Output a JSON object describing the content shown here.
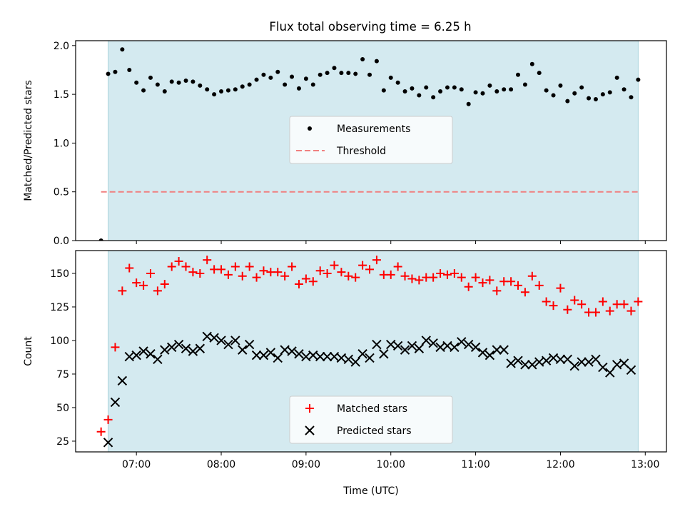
{
  "title": "Flux total observing time = 6.25 h",
  "colors": {
    "shade": "#d4eaf0",
    "threshold": "#f08080",
    "matched": "#ff0000",
    "predicted": "#000000",
    "measurement": "#000000"
  },
  "chart_data": [
    {
      "type": "scatter",
      "panel": "top",
      "ylabel": "Matched/Predicted stars",
      "xlim": [
        "06:17",
        "13:15"
      ],
      "ylim": [
        0,
        2.05
      ],
      "yticks": [
        0.0,
        0.5,
        1.0,
        1.5,
        2.0
      ],
      "ytick_labels": [
        "0.0",
        "0.5",
        "1.0",
        "1.5",
        "2.0"
      ],
      "shaded_span": [
        "06:40",
        "12:55"
      ],
      "threshold": 0.5,
      "legend": {
        "position": "center",
        "entries": [
          "Measurements",
          "Threshold"
        ]
      },
      "series": [
        {
          "name": "Measurements",
          "x": [
            "06:35",
            "06:40",
            "06:45",
            "06:50",
            "06:55",
            "07:00",
            "07:05",
            "07:10",
            "07:15",
            "07:20",
            "07:25",
            "07:30",
            "07:35",
            "07:40",
            "07:45",
            "07:50",
            "07:55",
            "08:00",
            "08:05",
            "08:10",
            "08:15",
            "08:20",
            "08:25",
            "08:30",
            "08:35",
            "08:40",
            "08:45",
            "08:50",
            "08:55",
            "09:00",
            "09:05",
            "09:10",
            "09:15",
            "09:20",
            "09:25",
            "09:30",
            "09:35",
            "09:40",
            "09:45",
            "09:50",
            "09:55",
            "10:00",
            "10:05",
            "10:10",
            "10:15",
            "10:20",
            "10:25",
            "10:30",
            "10:35",
            "10:40",
            "10:45",
            "10:50",
            "10:55",
            "11:00",
            "11:05",
            "11:10",
            "11:15",
            "11:20",
            "11:25",
            "11:30",
            "11:35",
            "11:40",
            "11:45",
            "11:50",
            "11:55",
            "12:00",
            "12:05",
            "12:10",
            "12:15",
            "12:20",
            "12:25",
            "12:30",
            "12:35",
            "12:40",
            "12:45",
            "12:50",
            "12:55"
          ],
          "y": [
            0.0,
            1.71,
            1.73,
            1.96,
            1.75,
            1.62,
            1.54,
            1.67,
            1.6,
            1.53,
            1.63,
            1.62,
            1.64,
            1.63,
            1.59,
            1.55,
            1.5,
            1.53,
            1.54,
            1.55,
            1.58,
            1.6,
            1.65,
            1.7,
            1.67,
            1.73,
            1.6,
            1.68,
            1.56,
            1.66,
            1.6,
            1.7,
            1.72,
            1.77,
            1.72,
            1.72,
            1.71,
            1.86,
            1.7,
            1.84,
            1.54,
            1.67,
            1.62,
            1.53,
            1.56,
            1.49,
            1.57,
            1.47,
            1.53,
            1.57,
            1.57,
            1.55,
            1.4,
            1.52,
            1.51,
            1.59,
            1.53,
            1.55,
            1.55,
            1.7,
            1.6,
            1.81,
            1.72,
            1.54,
            1.49,
            1.59,
            1.43,
            1.51,
            1.57,
            1.46,
            1.45,
            1.5,
            1.52,
            1.67,
            1.55,
            1.47,
            1.65
          ]
        }
      ]
    },
    {
      "type": "scatter",
      "panel": "bottom",
      "xlabel": "Time (UTC)",
      "ylabel": "Count",
      "xlim": [
        "06:17",
        "13:15"
      ],
      "ylim": [
        17,
        167
      ],
      "yticks": [
        25,
        50,
        75,
        100,
        125,
        150
      ],
      "ytick_labels": [
        "25",
        "50",
        "75",
        "100",
        "125",
        "150"
      ],
      "xticks": [
        "07:00",
        "08:00",
        "09:00",
        "10:00",
        "11:00",
        "12:00",
        "13:00"
      ],
      "shaded_span": [
        "06:40",
        "12:55"
      ],
      "legend": {
        "position": "lower center",
        "entries": [
          "Matched stars",
          "Predicted stars"
        ]
      },
      "series": [
        {
          "name": "Matched stars",
          "marker": "+",
          "x": [
            "06:35",
            "06:40",
            "06:45",
            "06:50",
            "06:55",
            "07:00",
            "07:05",
            "07:10",
            "07:15",
            "07:20",
            "07:25",
            "07:30",
            "07:35",
            "07:40",
            "07:45",
            "07:50",
            "07:55",
            "08:00",
            "08:05",
            "08:10",
            "08:15",
            "08:20",
            "08:25",
            "08:30",
            "08:35",
            "08:40",
            "08:45",
            "08:50",
            "08:55",
            "09:00",
            "09:05",
            "09:10",
            "09:15",
            "09:20",
            "09:25",
            "09:30",
            "09:35",
            "09:40",
            "09:45",
            "09:50",
            "09:55",
            "10:00",
            "10:05",
            "10:10",
            "10:15",
            "10:20",
            "10:25",
            "10:30",
            "10:35",
            "10:40",
            "10:45",
            "10:50",
            "10:55",
            "11:00",
            "11:05",
            "11:10",
            "11:15",
            "11:20",
            "11:25",
            "11:30",
            "11:35",
            "11:40",
            "11:45",
            "11:50",
            "11:55",
            "12:00",
            "12:05",
            "12:10",
            "12:15",
            "12:20",
            "12:25",
            "12:30",
            "12:35",
            "12:40",
            "12:45",
            "12:50",
            "12:55"
          ],
          "y": [
            32,
            41,
            95,
            137,
            154,
            143,
            141,
            150,
            137,
            142,
            155,
            159,
            155,
            151,
            150,
            160,
            153,
            153,
            149,
            155,
            148,
            155,
            147,
            152,
            151,
            151,
            148,
            155,
            142,
            146,
            144,
            152,
            150,
            156,
            151,
            148,
            147,
            156,
            153,
            160,
            149,
            149,
            155,
            148,
            146,
            145,
            147,
            147,
            150,
            149,
            150,
            147,
            140,
            147,
            143,
            145,
            137,
            144,
            144,
            141,
            136,
            148,
            141,
            129,
            126,
            139,
            123,
            130,
            127,
            121,
            121,
            129,
            122,
            127,
            127,
            122,
            129
          ]
        },
        {
          "name": "Predicted stars",
          "marker": "x",
          "x": [
            "06:35",
            "06:40",
            "06:45",
            "06:50",
            "06:55",
            "07:00",
            "07:05",
            "07:10",
            "07:15",
            "07:20",
            "07:25",
            "07:30",
            "07:35",
            "07:40",
            "07:45",
            "07:50",
            "07:55",
            "08:00",
            "08:05",
            "08:10",
            "08:15",
            "08:20",
            "08:25",
            "08:30",
            "08:35",
            "08:40",
            "08:45",
            "08:50",
            "08:55",
            "09:00",
            "09:05",
            "09:10",
            "09:15",
            "09:20",
            "09:25",
            "09:30",
            "09:35",
            "09:40",
            "09:45",
            "09:50",
            "09:55",
            "10:00",
            "10:05",
            "10:10",
            "10:15",
            "10:20",
            "10:25",
            "10:30",
            "10:35",
            "10:40",
            "10:45",
            "10:50",
            "10:55",
            "11:00",
            "11:05",
            "11:10",
            "11:15",
            "11:20",
            "11:25",
            "11:30",
            "11:35",
            "11:40",
            "11:45",
            "11:50",
            "11:55",
            "12:00",
            "12:05",
            "12:10",
            "12:15",
            "12:20",
            "12:25",
            "12:30",
            "12:35",
            "12:40",
            "12:45",
            "12:50",
            "12:55"
          ],
          "y": [
            null,
            24,
            54,
            70,
            88,
            89,
            92,
            90,
            86,
            93,
            95,
            97,
            94,
            92,
            94,
            103,
            102,
            100,
            97,
            100,
            93,
            97,
            89,
            89,
            91,
            87,
            93,
            92,
            90,
            88,
            89,
            88,
            88,
            88,
            87,
            86,
            84,
            90,
            87,
            97,
            90,
            97,
            96,
            93,
            96,
            94,
            100,
            98,
            95,
            96,
            95,
            99,
            97,
            95,
            91,
            89,
            93,
            93,
            83,
            85,
            82,
            82,
            84,
            85,
            87,
            86,
            86,
            81,
            84,
            84,
            86,
            80,
            76,
            82,
            83,
            78,
            null
          ]
        }
      ]
    }
  ]
}
